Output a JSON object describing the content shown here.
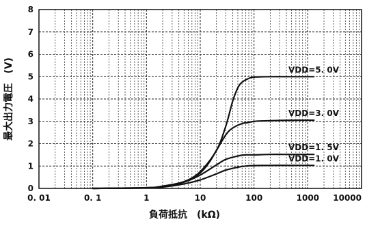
{
  "chart_data": {
    "type": "line",
    "xscale": "log",
    "xlim": [
      0.01,
      10000
    ],
    "ylim": [
      0,
      8
    ],
    "xticks": [
      "0. 01",
      "0. 1",
      "1",
      "10",
      "100",
      "1000",
      "10000"
    ],
    "xtick_values": [
      0.01,
      0.1,
      1,
      10,
      100,
      1000,
      10000
    ],
    "yticks": [
      "0",
      "1",
      "2",
      "3",
      "4",
      "5",
      "6",
      "7",
      "8"
    ],
    "ytick_values": [
      0,
      1,
      2,
      3,
      4,
      5,
      6,
      7,
      8
    ],
    "xlabel": "負荷抵抗　(kΩ)",
    "ylabel": "最大出力電圧　(V)",
    "grid": true,
    "series": [
      {
        "name": "VDD=5. 0V",
        "x": [
          0.1,
          1,
          2,
          5,
          10,
          20,
          30,
          40,
          50,
          60,
          80,
          100,
          200,
          500,
          1300
        ],
        "y": [
          0.0,
          0.03,
          0.1,
          0.3,
          0.75,
          1.7,
          2.8,
          3.9,
          4.5,
          4.75,
          4.92,
          4.98,
          5.0,
          5.0,
          5.0
        ]
      },
      {
        "name": "VDD=3. 0V",
        "x": [
          0.1,
          1,
          2,
          5,
          10,
          15,
          20,
          30,
          40,
          60,
          80,
          100,
          200,
          500,
          1300
        ],
        "y": [
          0.0,
          0.03,
          0.1,
          0.3,
          0.7,
          1.2,
          1.7,
          2.4,
          2.7,
          2.9,
          2.95,
          3.0,
          3.03,
          3.05,
          3.05
        ]
      },
      {
        "name": "VDD=1. 5V",
        "x": [
          0.1,
          1,
          2,
          5,
          10,
          20,
          30,
          50,
          70,
          100,
          200,
          500,
          1300
        ],
        "y": [
          0.0,
          0.02,
          0.08,
          0.28,
          0.6,
          1.05,
          1.3,
          1.45,
          1.5,
          1.5,
          1.52,
          1.52,
          1.52
        ]
      },
      {
        "name": "VDD=1. 0V",
        "x": [
          0.1,
          1,
          2,
          5,
          10,
          20,
          30,
          50,
          70,
          100,
          200,
          500,
          1300
        ],
        "y": [
          0.0,
          0.02,
          0.06,
          0.2,
          0.38,
          0.65,
          0.82,
          0.95,
          1.0,
          1.02,
          1.03,
          1.03,
          1.03
        ]
      }
    ]
  }
}
